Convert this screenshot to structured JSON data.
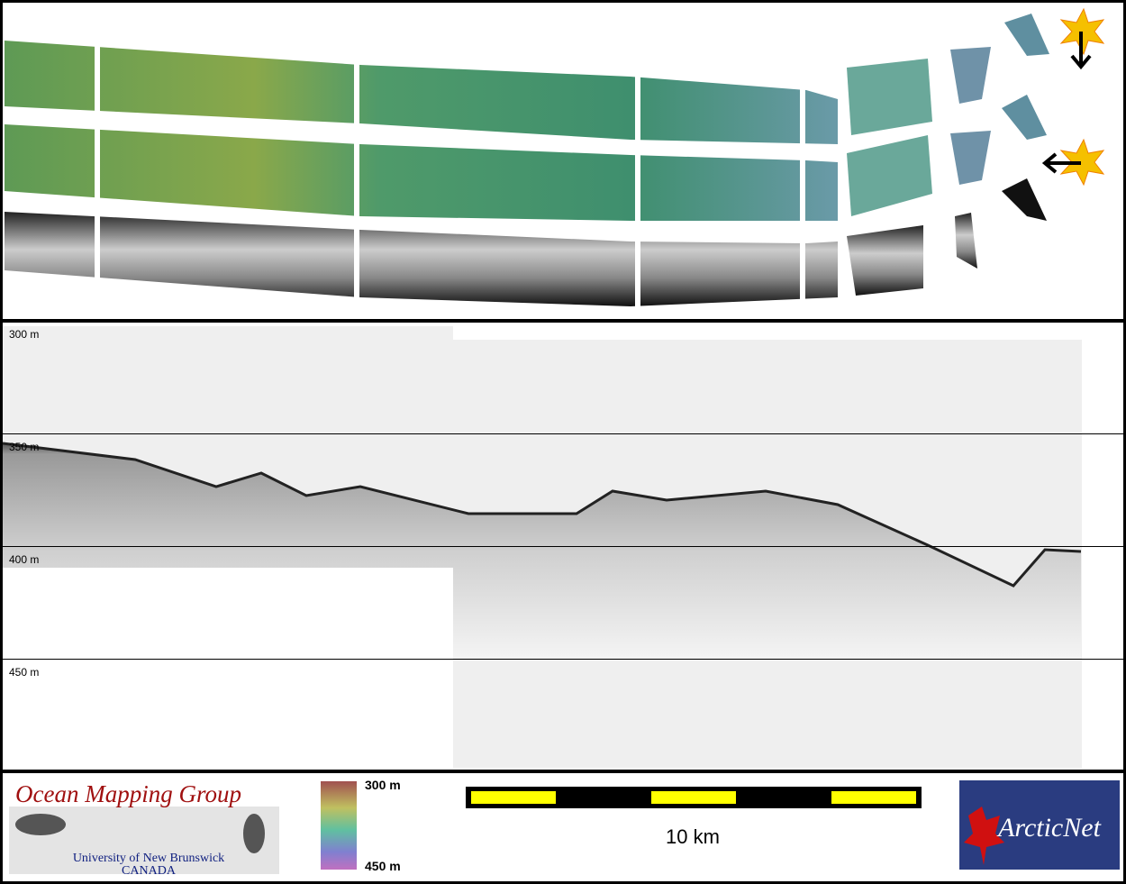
{
  "profile": {
    "depth_labels": [
      "300 m",
      "350 m",
      "400 m",
      "450 m"
    ]
  },
  "footer": {
    "logo": {
      "title": "Ocean Mapping Group",
      "subtitle": "University of New Brunswick",
      "country": "CANADA"
    },
    "colorbar": {
      "top_label": "300 m",
      "bottom_label": "450 m"
    },
    "scale_bar": {
      "label": "10 km"
    },
    "partner": {
      "label": "ArcticNet"
    }
  }
}
